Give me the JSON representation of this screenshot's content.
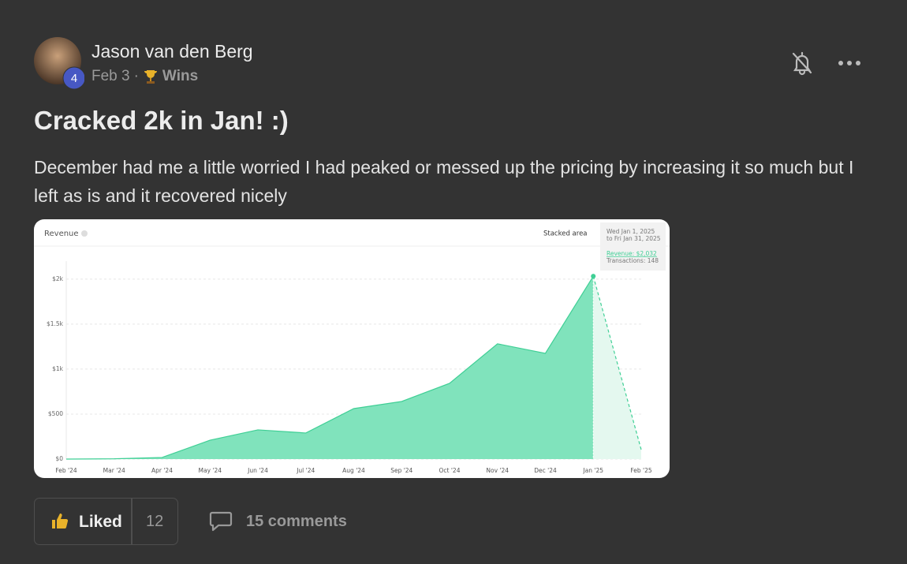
{
  "post": {
    "author": "Jason van den Berg",
    "level": "4",
    "date": "Feb 3",
    "separator": "·",
    "category": "Wins",
    "title": "Cracked 2k in Jan! :)",
    "body": "December had me a little worried I had peaked or messed up the pricing by increasing it so much but I left as is and it recovered nicely"
  },
  "chart_data": {
    "type": "area",
    "title": "Revenue",
    "mode": "Stacked area",
    "tooltip": {
      "range_start": "Wed Jan 1, 2025",
      "range_end": "to Fri Jan 31, 2025",
      "revenue": "Revenue: $2,032",
      "transactions": "Transactions: 148"
    },
    "categories": [
      "Feb '24",
      "Mar '24",
      "Apr '24",
      "May '24",
      "Jun '24",
      "Jul '24",
      "Aug '24",
      "Sep '24",
      "Oct '24",
      "Nov '24",
      "Dec '24",
      "Jan '25",
      "Feb '25"
    ],
    "values": [
      0,
      3,
      18,
      210,
      325,
      290,
      561,
      640,
      842,
      1281,
      1175,
      2032,
      105
    ],
    "color": "#80e3bc",
    "line_color": "#3fcf95",
    "projection": true,
    "ylim": [
      0,
      2200
    ],
    "yticks": [
      {
        "value": 0,
        "label": "$0"
      },
      {
        "value": 500,
        "label": "$500"
      },
      {
        "value": 1000,
        "label": "$1k"
      },
      {
        "value": 1500,
        "label": "$1.5k"
      },
      {
        "value": 2000,
        "label": "$2k"
      }
    ],
    "grid": true
  },
  "actions": {
    "like_label": "Liked",
    "like_count": 12,
    "comments": "15 comments"
  }
}
